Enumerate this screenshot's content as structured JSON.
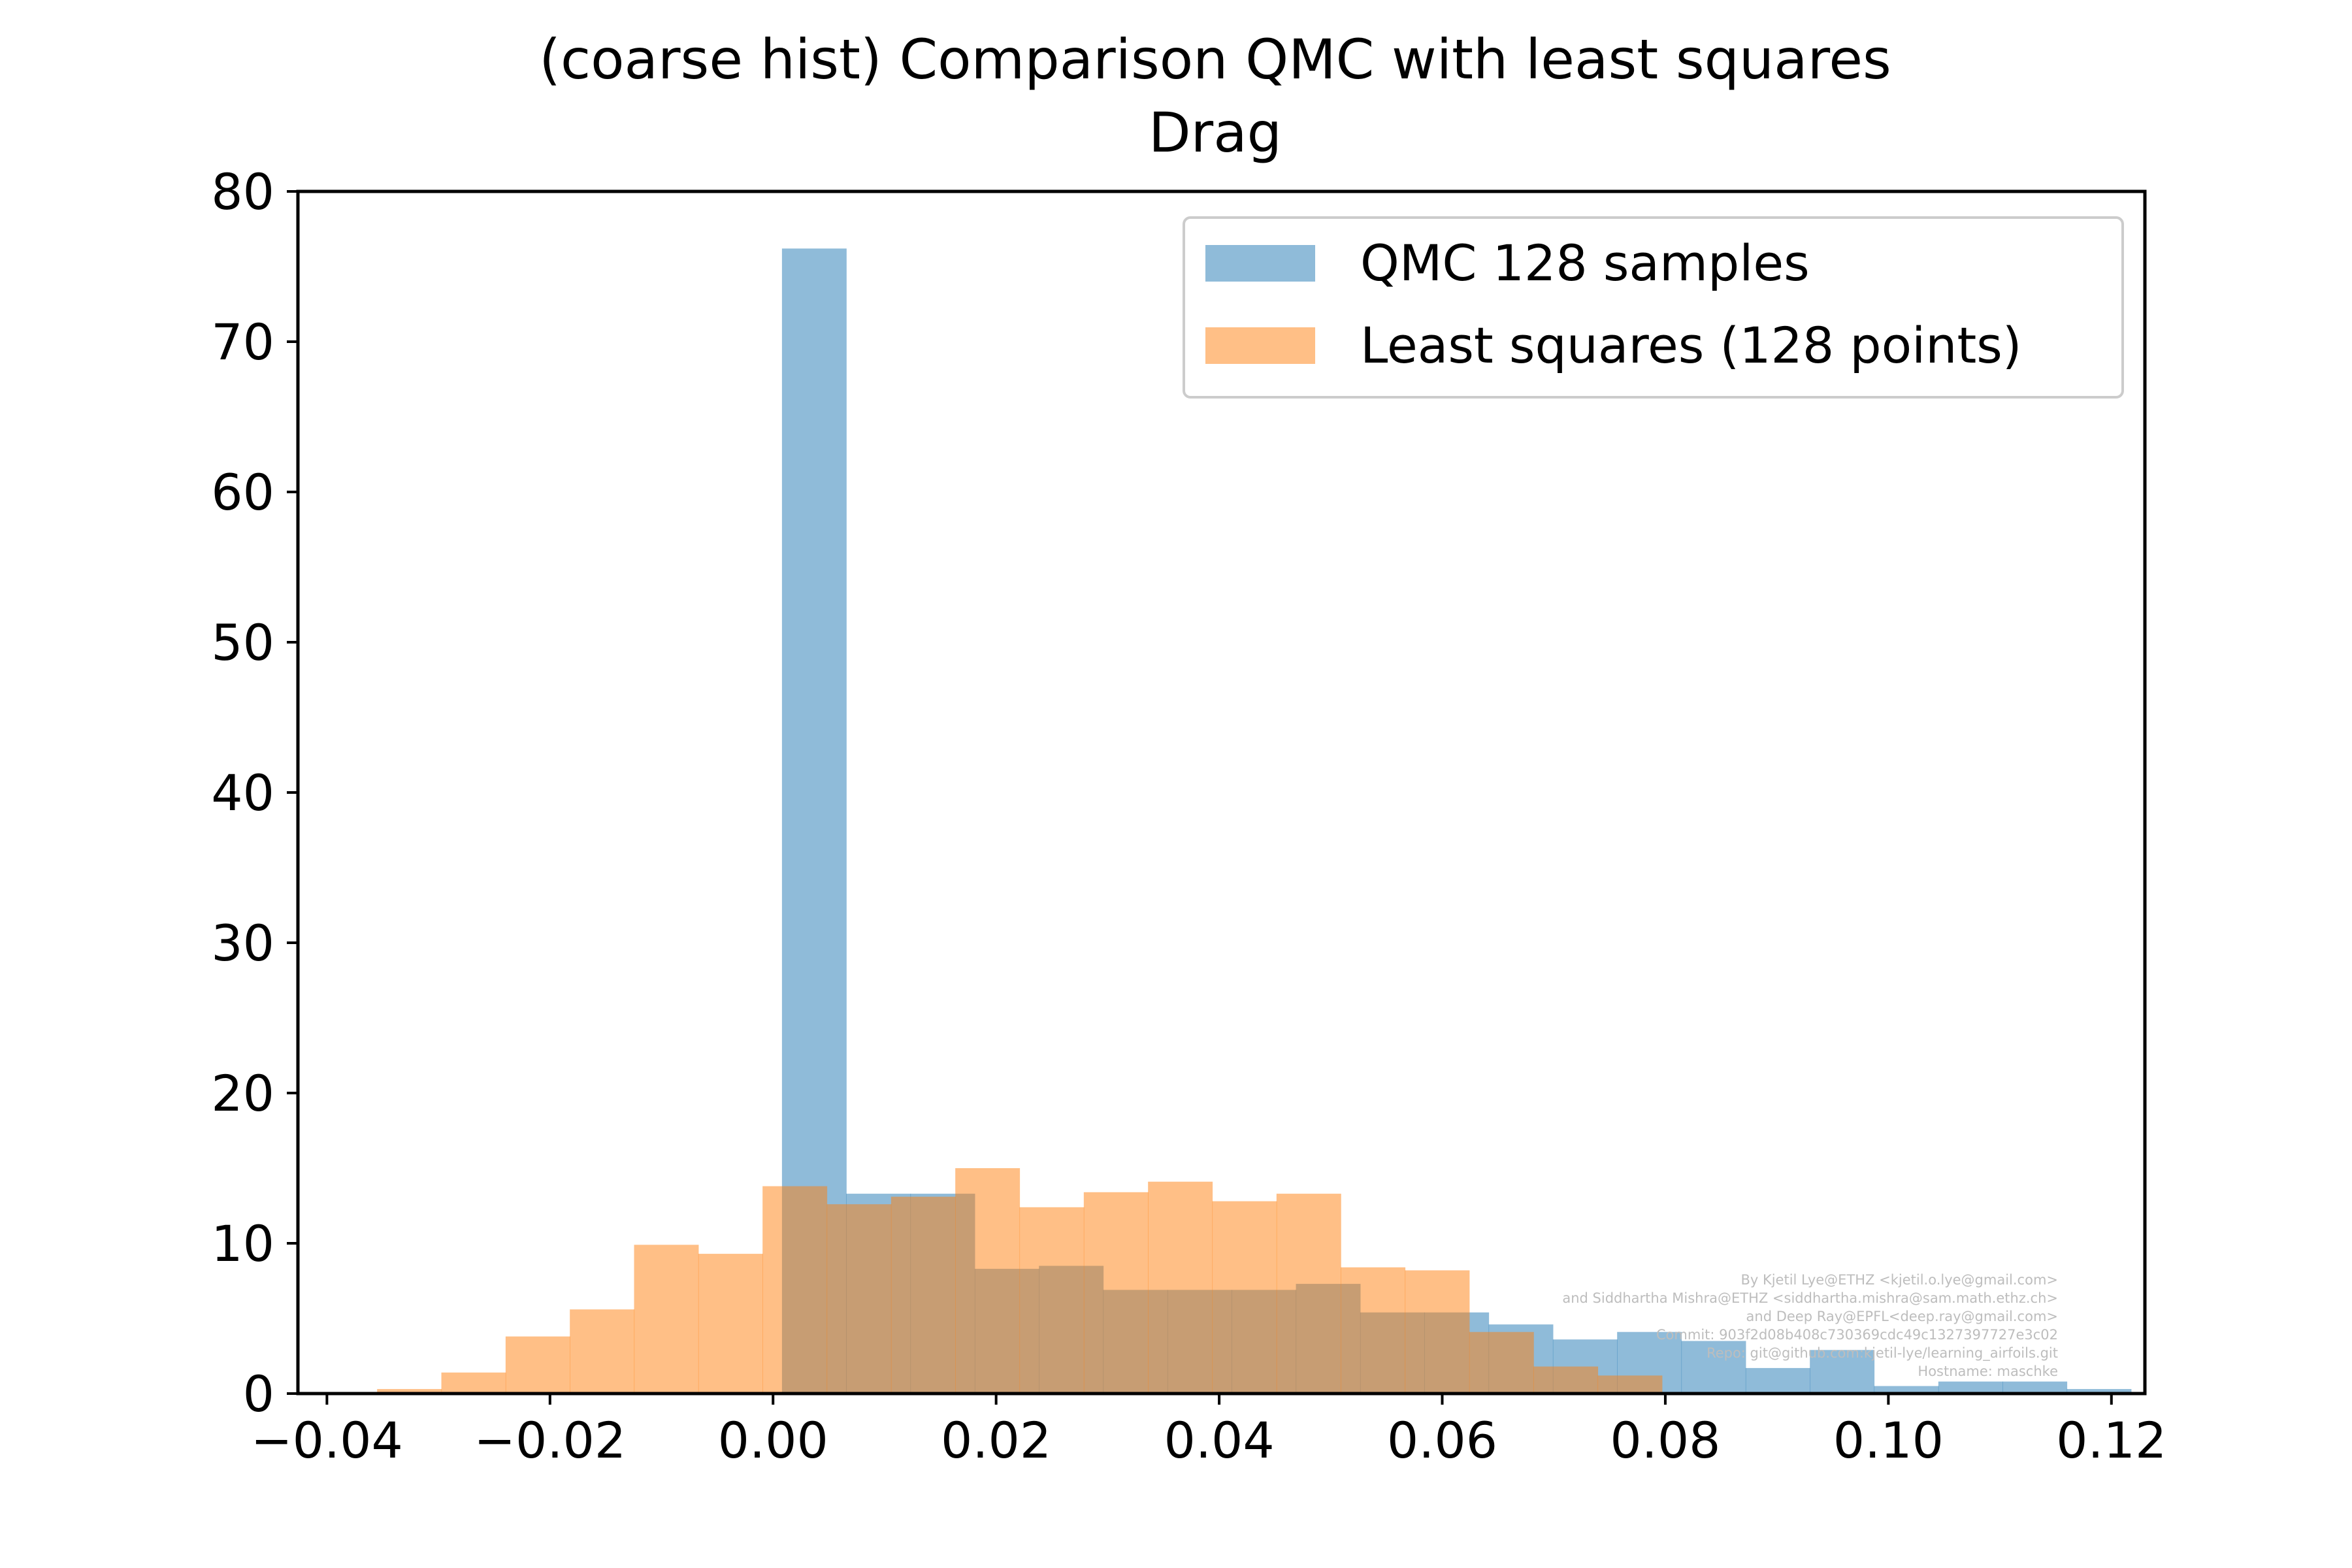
{
  "chart_data": {
    "type": "bar",
    "title": "(coarse hist) Comparison QMC with least squares",
    "subtitle": "Drag",
    "xlabel": "",
    "ylabel": "",
    "xlim": [
      -0.0426,
      0.123
    ],
    "ylim": [
      0,
      80
    ],
    "xticks": [
      -0.04,
      -0.02,
      0.0,
      0.02,
      0.04,
      0.06,
      0.08,
      0.1,
      0.12
    ],
    "xtick_labels": [
      "−0.04",
      "−0.02",
      "0.00",
      "0.02",
      "0.04",
      "0.06",
      "0.08",
      "0.10",
      "0.12"
    ],
    "yticks": [
      0,
      10,
      20,
      30,
      40,
      50,
      60,
      70,
      80
    ],
    "ytick_labels": [
      "0",
      "10",
      "20",
      "30",
      "40",
      "50",
      "60",
      "70",
      "80"
    ],
    "grid": false,
    "legend_position": "top-right",
    "series": [
      {
        "name": "QMC 128 samples",
        "color": "#1f77b4",
        "opacity": 0.5,
        "bin_start": 0.0008,
        "bin_width": 0.00576,
        "values": [
          76.2,
          13.3,
          13.3,
          8.3,
          8.5,
          6.9,
          6.9,
          6.9,
          7.3,
          5.4,
          5.4,
          4.6,
          3.6,
          4.1,
          3.5,
          1.7,
          2.9,
          0.5,
          0.8,
          0.8,
          0.3
        ]
      },
      {
        "name": "Least squares (128 points)",
        "color": "#ff7f0e",
        "opacity": 0.5,
        "bin_start": -0.0355,
        "bin_width": 0.00576,
        "values": [
          0.3,
          1.4,
          3.8,
          5.6,
          9.9,
          9.3,
          13.8,
          12.6,
          13.1,
          15.0,
          12.4,
          13.4,
          14.1,
          12.8,
          13.3,
          8.4,
          8.2,
          4.1,
          1.8,
          1.2
        ]
      }
    ]
  },
  "watermark": [
    "By Kjetil Lye@ETHZ <kjetil.o.lye@gmail.com>",
    "and Siddhartha Mishra@ETHZ <siddhartha.mishra@sam.math.ethz.ch>",
    "and Deep Ray@EPFL<deep.ray@gmail.com>",
    "Commit: 903f2d08b408c730369cdc49c1327397727e3c02",
    "Repo: git@github.com:kjetil-lye/learning_airfoils.git",
    "Hostname: maschke"
  ]
}
